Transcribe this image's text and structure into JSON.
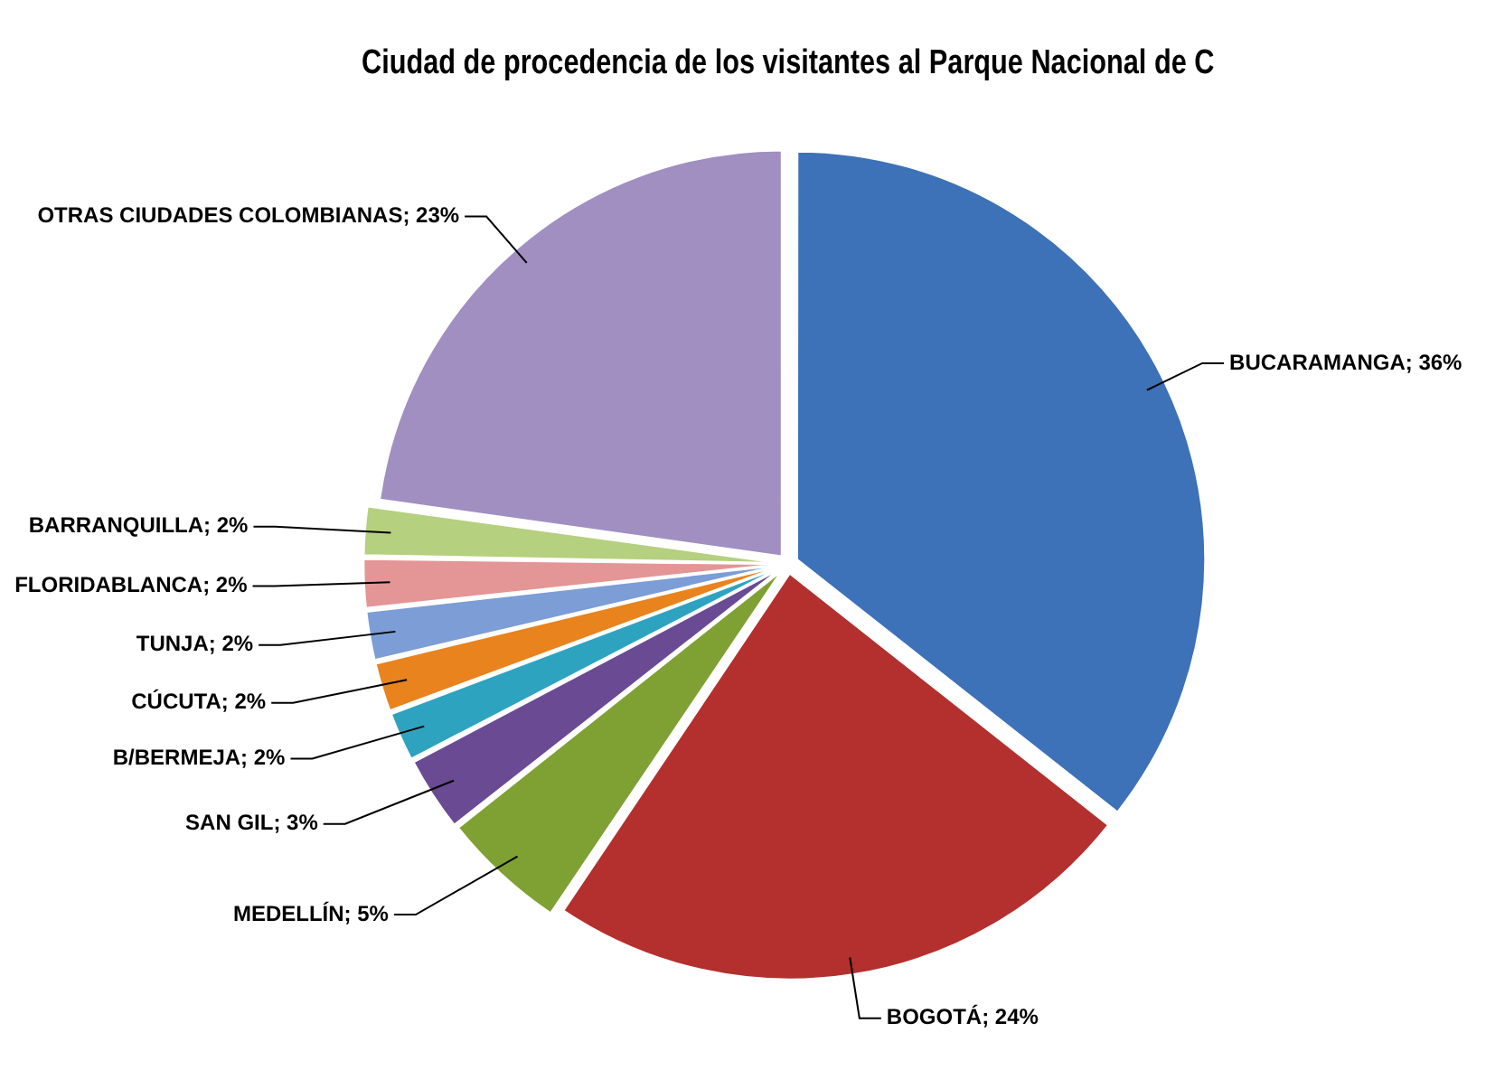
{
  "chart_data": {
    "type": "pie",
    "title": "Ciudad de procedencia de los visitantes al Parque Nacional de C",
    "categories": [
      "BUCARAMANGA",
      "BOGOTÁ",
      "MEDELLÍN",
      "SAN GIL",
      "B/BERMEJA",
      "CÚCUTA",
      "TUNJA",
      "FLORIDABLANCA",
      "BARRANQUILLA",
      "OTRAS CIUDADES COLOMBIANAS"
    ],
    "values": [
      36,
      24,
      5,
      3,
      2,
      2,
      2,
      2,
      2,
      23
    ],
    "value_labels": [
      "36%",
      "24%",
      "5%",
      "3%",
      "2%",
      "2%",
      "2%",
      "2%",
      "2%",
      "23%"
    ],
    "colors": [
      "#3d71b8",
      "#b3302e",
      "#7fa033",
      "#6a4a93",
      "#2ea3c0",
      "#e8831e",
      "#7c9dd6",
      "#e49596",
      "#b5d07e",
      "#a08fc0"
    ],
    "legend": false
  }
}
